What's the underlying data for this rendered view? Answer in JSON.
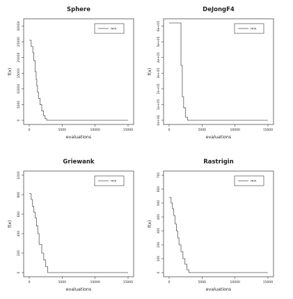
{
  "chart_data": [
    {
      "type": "line",
      "title": "Sphere",
      "xlabel": "evaluations",
      "ylabel": "f(x)",
      "xlim": [
        0,
        15000
      ],
      "ylim": [
        0,
        31000
      ],
      "x_ticks": [
        0,
        5000,
        10000,
        15000
      ],
      "x_tick_labels": [
        "0",
        "5000",
        "10000",
        "15000"
      ],
      "y_ticks": [
        0,
        5000,
        10000,
        15000,
        20000,
        25000,
        30000
      ],
      "y_tick_labels": [
        "0",
        "5000",
        "10000",
        "15000",
        "20000",
        "25000",
        "30000"
      ],
      "legend": "top-right",
      "series": [
        {
          "name": "min",
          "color": "#555555",
          "x": [
            0,
            300,
            300,
            550,
            550,
            700,
            700,
            900,
            900,
            1050,
            1050,
            1150,
            1150,
            1250,
            1250,
            1400,
            1400,
            1650,
            1650,
            1900,
            1900,
            2150,
            2150,
            2400,
            2400,
            2650,
            2650,
            15000
          ],
          "y": [
            25500,
            25500,
            23500,
            23500,
            21500,
            21500,
            19000,
            19000,
            15500,
            15500,
            13000,
            13000,
            11000,
            11000,
            9000,
            9000,
            7000,
            7000,
            5000,
            5000,
            3000,
            3000,
            1500,
            1500,
            500,
            500,
            0,
            0
          ]
        }
      ]
    },
    {
      "type": "line",
      "title": "DeJongF4",
      "xlabel": "evaluations",
      "ylabel": "f(x)",
      "xlim": [
        0,
        15000
      ],
      "ylim": [
        0,
        620000
      ],
      "x_ticks": [
        0,
        5000,
        10000,
        15000
      ],
      "x_tick_labels": [
        "0",
        "5000",
        "10000",
        "15000"
      ],
      "y_ticks": [
        0,
        100000,
        200000,
        300000,
        400000,
        500000,
        600000
      ],
      "y_tick_labels": [
        "0e+00",
        "1e+05",
        "2e+05",
        "3e+05",
        "4e+05",
        "5e+05",
        "6e+05"
      ],
      "legend": "top-right",
      "series": [
        {
          "name": "min",
          "color": "#555555",
          "x": [
            0,
            1800,
            1800,
            2000,
            2000,
            2200,
            2200,
            2500,
            2500,
            2800,
            2800,
            15000
          ],
          "y": [
            620000,
            620000,
            350000,
            350000,
            150000,
            150000,
            80000,
            80000,
            20000,
            20000,
            0,
            0
          ]
        }
      ]
    },
    {
      "type": "line",
      "title": "Griewank",
      "xlabel": "evaluations",
      "ylabel": "f(x)",
      "xlim": [
        0,
        15000
      ],
      "ylim": [
        0,
        1000
      ],
      "x_ticks": [
        0,
        5000,
        10000,
        15000
      ],
      "x_tick_labels": [
        "0",
        "5000",
        "10000",
        "15000"
      ],
      "y_ticks": [
        0,
        200,
        400,
        600,
        800,
        1000
      ],
      "y_tick_labels": [
        "0",
        "200",
        "400",
        "600",
        "800",
        "1000"
      ],
      "legend": "top-right",
      "series": [
        {
          "name": "min",
          "color": "#555555",
          "x": [
            0,
            300,
            300,
            500,
            500,
            700,
            700,
            900,
            900,
            1100,
            1100,
            1300,
            1300,
            1500,
            1500,
            1900,
            1900,
            2200,
            2200,
            2500,
            2500,
            2800,
            2800,
            15000
          ],
          "y": [
            810,
            810,
            750,
            750,
            680,
            680,
            620,
            620,
            560,
            560,
            480,
            480,
            400,
            400,
            290,
            290,
            200,
            200,
            130,
            130,
            60,
            60,
            0,
            0
          ]
        }
      ]
    },
    {
      "type": "line",
      "title": "Rastrigin",
      "xlabel": "evaluations",
      "ylabel": "f(x)",
      "xlim": [
        0,
        15000
      ],
      "ylim": [
        0,
        700
      ],
      "x_ticks": [
        0,
        5000,
        10000,
        15000
      ],
      "x_tick_labels": [
        "0",
        "5000",
        "10000",
        "15000"
      ],
      "y_ticks": [
        0,
        100,
        200,
        300,
        400,
        500,
        600,
        700
      ],
      "y_tick_labels": [
        "0",
        "100",
        "200",
        "300",
        "400",
        "500",
        "600",
        "700"
      ],
      "legend": "top-right",
      "series": [
        {
          "name": "min",
          "color": "#555555",
          "x": [
            0,
            300,
            300,
            500,
            500,
            700,
            700,
            900,
            900,
            1100,
            1100,
            1300,
            1300,
            1500,
            1500,
            1800,
            1800,
            2100,
            2100,
            2400,
            2400,
            2700,
            2700,
            3000,
            3000,
            15000
          ],
          "y": [
            540,
            540,
            500,
            500,
            460,
            460,
            410,
            410,
            350,
            350,
            300,
            300,
            250,
            250,
            200,
            200,
            150,
            150,
            100,
            100,
            60,
            60,
            20,
            20,
            0,
            0
          ]
        }
      ]
    }
  ]
}
